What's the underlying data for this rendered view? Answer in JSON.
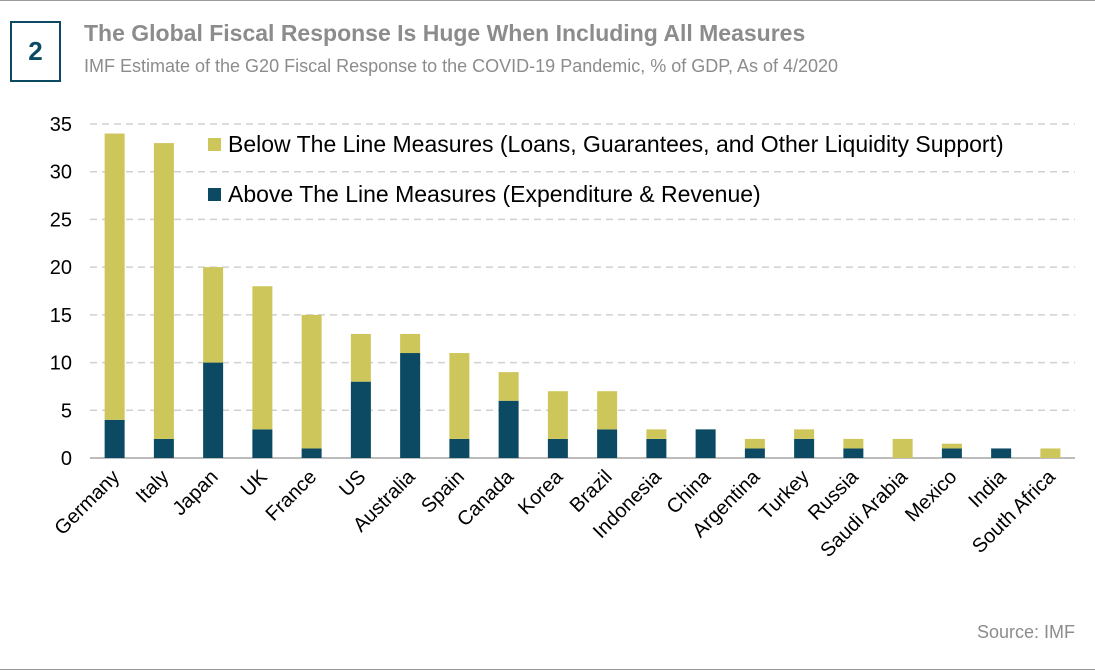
{
  "header": {
    "badge": "2",
    "title": "The Global Fiscal Response Is Huge When Including All Measures",
    "subtitle": "IMF Estimate of the G20 Fiscal Response to the COVID-19 Pandemic, % of GDP, As of 4/2020"
  },
  "footer": {
    "source": "Source: IMF"
  },
  "colors": {
    "above": "#0c4a63",
    "below": "#cdc65a",
    "grid": "#d0d0d0",
    "axis": "#a6a6a6",
    "text_muted": "#8c8c8c"
  },
  "chart_data": {
    "type": "bar",
    "stacked": true,
    "categories": [
      "Germany",
      "Italy",
      "Japan",
      "UK",
      "France",
      "US",
      "Australia",
      "Spain",
      "Canada",
      "Korea",
      "Brazil",
      "Indonesia",
      "China",
      "Argentina",
      "Turkey",
      "Russia",
      "Saudi Arabia",
      "Mexico",
      "India",
      "South Africa"
    ],
    "series": [
      {
        "name": "Above The Line Measures (Expenditure & Revenue)",
        "color": "#0c4a63",
        "values": [
          4,
          2,
          10,
          3,
          1,
          8,
          11,
          2,
          6,
          2,
          3,
          2,
          3,
          1,
          2,
          1,
          0,
          1,
          1,
          0
        ]
      },
      {
        "name": "Below The Line Measures (Loans, Guarantees, and Other Liquidity Support)",
        "color": "#cdc65a",
        "values": [
          30,
          31,
          10,
          15,
          14,
          5,
          2,
          9,
          3,
          5,
          4,
          1,
          0,
          1,
          1,
          1,
          2,
          0.5,
          0,
          1
        ]
      }
    ],
    "legend_order": [
      1,
      0
    ],
    "legend_position": "top-right",
    "ylim": [
      0,
      35
    ],
    "yticks": [
      0,
      5,
      10,
      15,
      20,
      25,
      30,
      35
    ],
    "grid": true,
    "xlabel": "",
    "ylabel": ""
  }
}
